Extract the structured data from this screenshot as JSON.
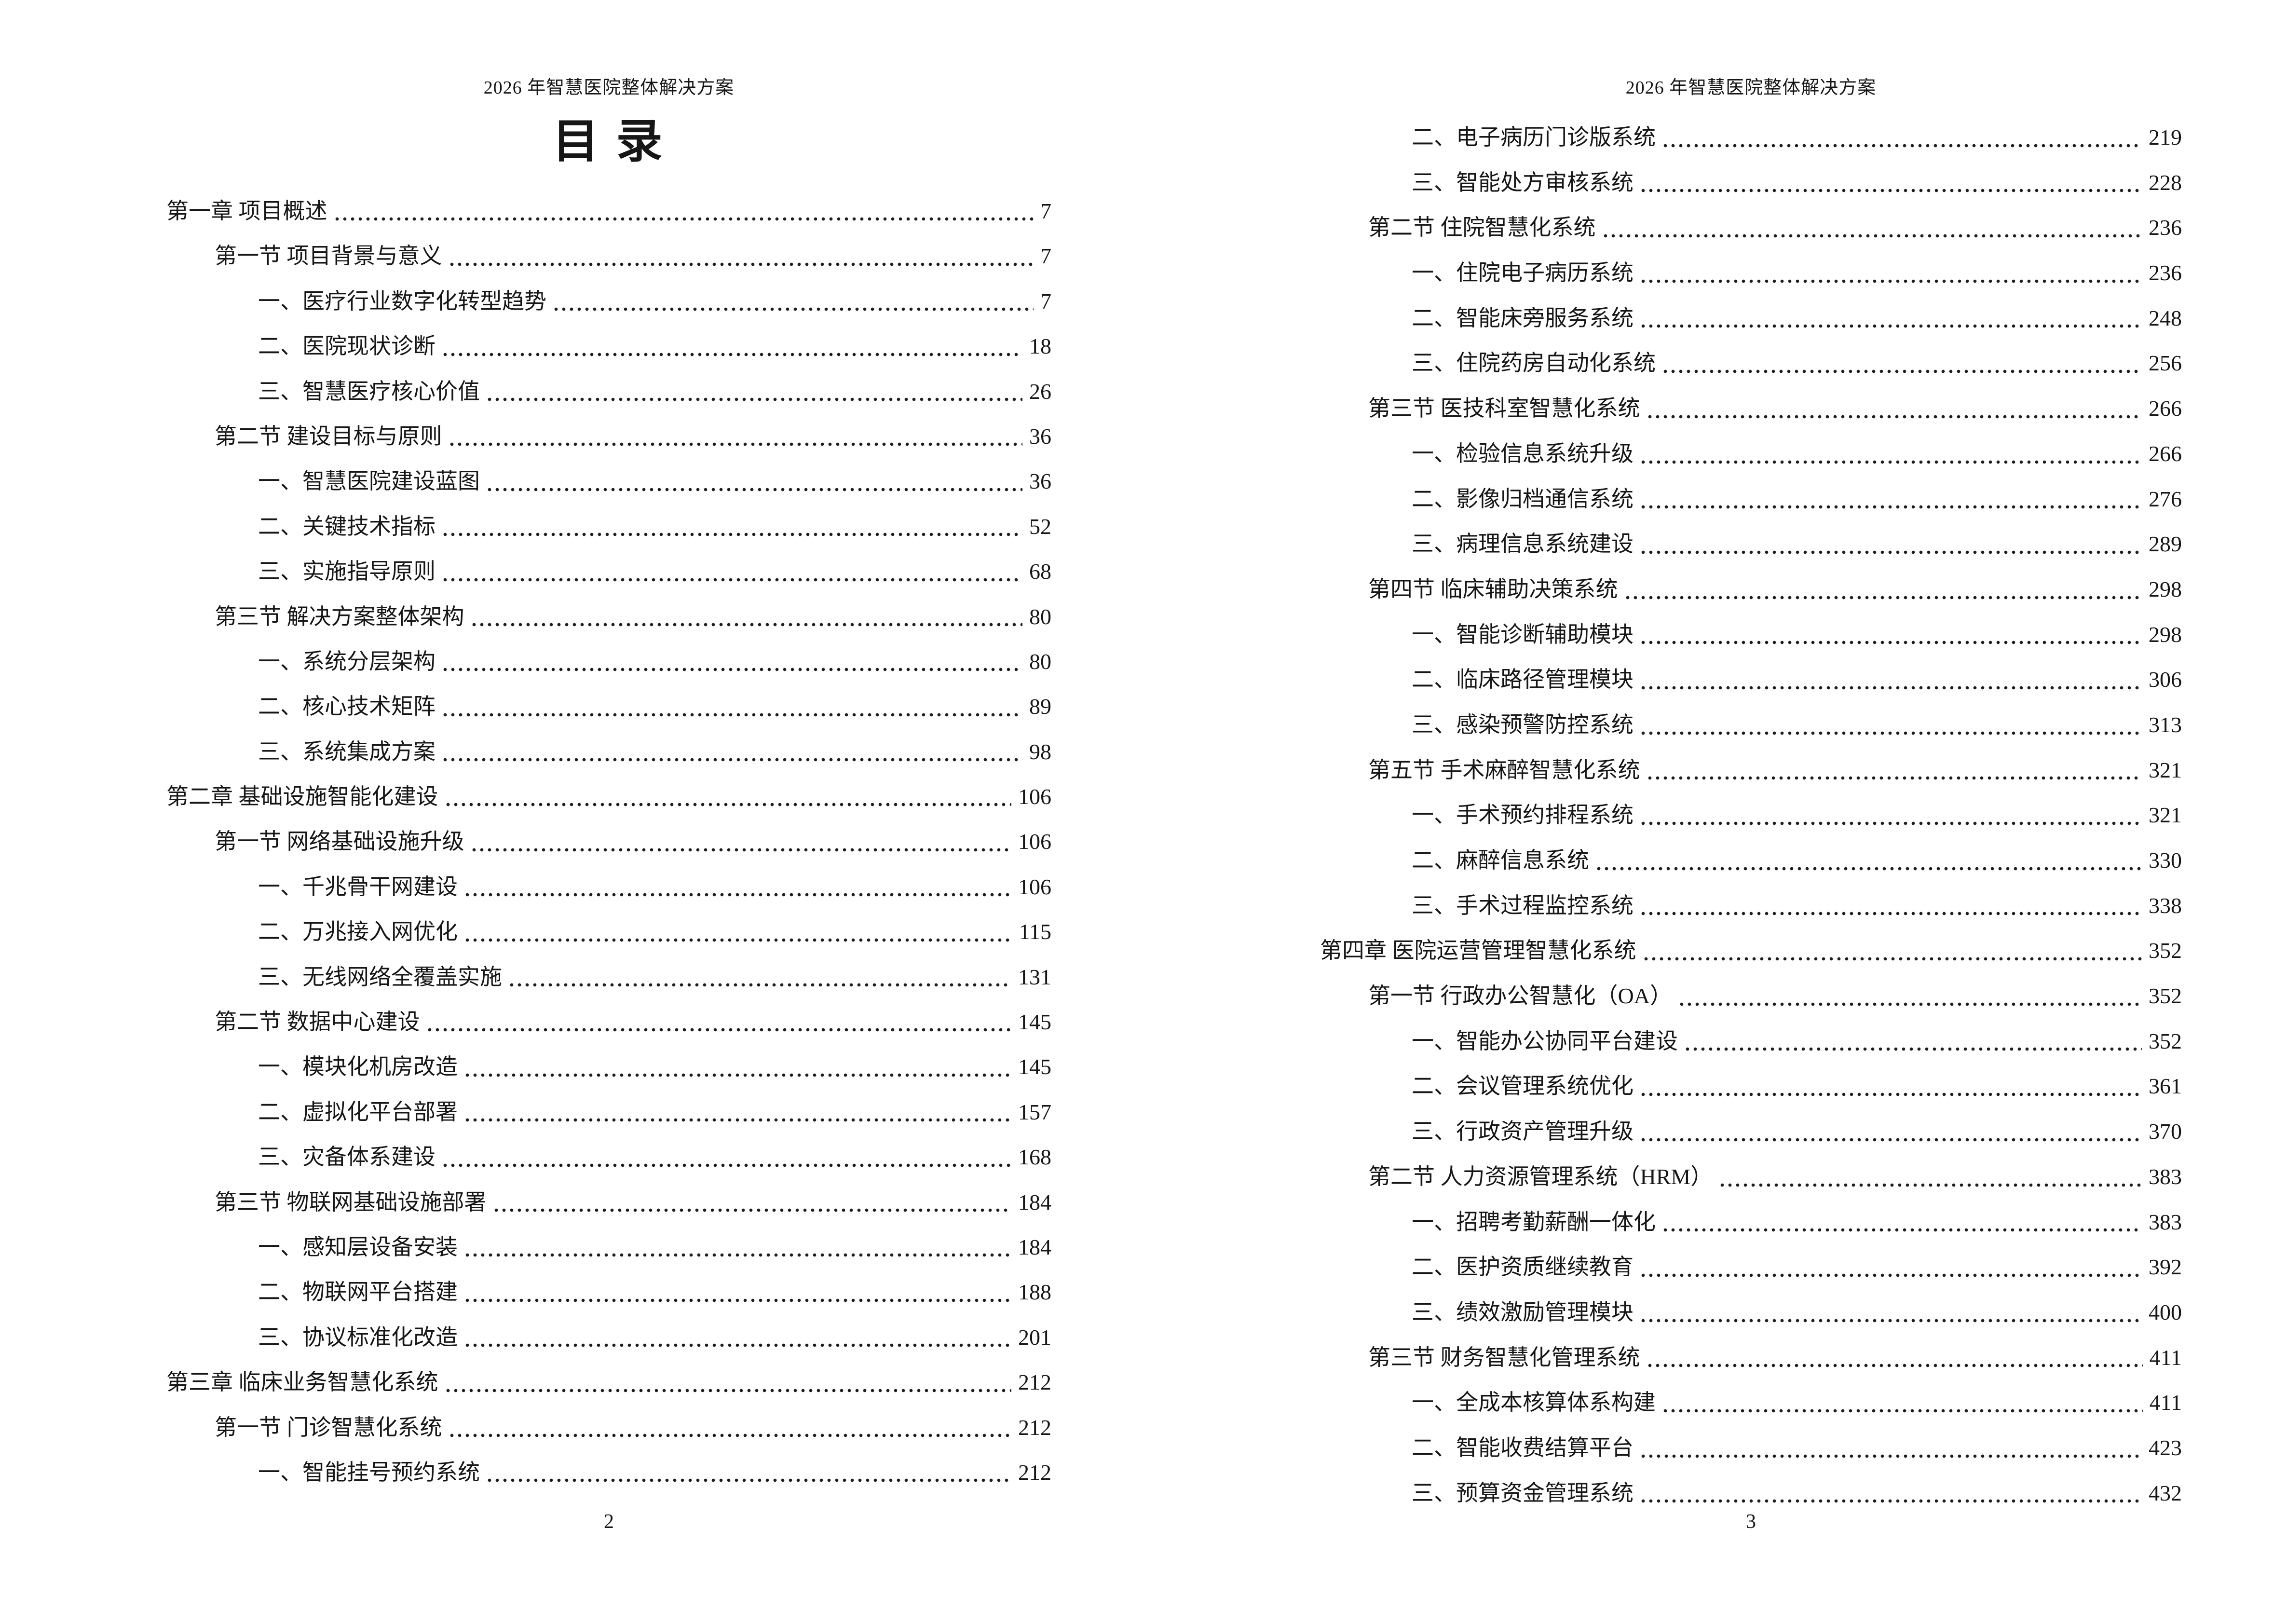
{
  "toc_title": "目 录",
  "pages": [
    {
      "header": "2026 年智慧医院整体解决方案",
      "footer_page_number": "2",
      "entries": [
        {
          "level": 0,
          "label": "第一章 项目概述",
          "page": "7"
        },
        {
          "level": 1,
          "label": "第一节 项目背景与意义",
          "page": "7"
        },
        {
          "level": 2,
          "label": "一、医疗行业数字化转型趋势",
          "page": "7"
        },
        {
          "level": 2,
          "label": "二、医院现状诊断",
          "page": "18"
        },
        {
          "level": 2,
          "label": "三、智慧医疗核心价值",
          "page": "26"
        },
        {
          "level": 1,
          "label": "第二节 建设目标与原则",
          "page": "36"
        },
        {
          "level": 2,
          "label": "一、智慧医院建设蓝图",
          "page": "36"
        },
        {
          "level": 2,
          "label": "二、关键技术指标",
          "page": "52"
        },
        {
          "level": 2,
          "label": "三、实施指导原则",
          "page": "68"
        },
        {
          "level": 1,
          "label": "第三节 解决方案整体架构",
          "page": "80"
        },
        {
          "level": 2,
          "label": "一、系统分层架构",
          "page": "80"
        },
        {
          "level": 2,
          "label": "二、核心技术矩阵",
          "page": "89"
        },
        {
          "level": 2,
          "label": "三、系统集成方案",
          "page": "98"
        },
        {
          "level": 0,
          "label": "第二章 基础设施智能化建设",
          "page": "106"
        },
        {
          "level": 1,
          "label": "第一节 网络基础设施升级",
          "page": "106"
        },
        {
          "level": 2,
          "label": "一、千兆骨干网建设",
          "page": "106"
        },
        {
          "level": 2,
          "label": "二、万兆接入网优化",
          "page": "115"
        },
        {
          "level": 2,
          "label": "三、无线网络全覆盖实施",
          "page": "131"
        },
        {
          "level": 1,
          "label": "第二节 数据中心建设",
          "page": "145"
        },
        {
          "level": 2,
          "label": "一、模块化机房改造",
          "page": "145"
        },
        {
          "level": 2,
          "label": "二、虚拟化平台部署",
          "page": "157"
        },
        {
          "level": 2,
          "label": "三、灾备体系建设",
          "page": "168"
        },
        {
          "level": 1,
          "label": "第三节 物联网基础设施部署",
          "page": "184"
        },
        {
          "level": 2,
          "label": "一、感知层设备安装",
          "page": "184"
        },
        {
          "level": 2,
          "label": "二、物联网平台搭建",
          "page": "188"
        },
        {
          "level": 2,
          "label": "三、协议标准化改造",
          "page": "201"
        },
        {
          "level": 0,
          "label": "第三章 临床业务智慧化系统",
          "page": "212"
        },
        {
          "level": 1,
          "label": "第一节 门诊智慧化系统",
          "page": "212"
        },
        {
          "level": 2,
          "label": "一、智能挂号预约系统",
          "page": "212"
        }
      ]
    },
    {
      "header": "2026 年智慧医院整体解决方案",
      "footer_page_number": "3",
      "entries": [
        {
          "level": 2,
          "label": "二、电子病历门诊版系统",
          "page": "219"
        },
        {
          "level": 2,
          "label": "三、智能处方审核系统",
          "page": "228"
        },
        {
          "level": 1,
          "label": "第二节 住院智慧化系统",
          "page": "236"
        },
        {
          "level": 2,
          "label": "一、住院电子病历系统",
          "page": "236"
        },
        {
          "level": 2,
          "label": "二、智能床旁服务系统",
          "page": "248"
        },
        {
          "level": 2,
          "label": "三、住院药房自动化系统",
          "page": "256"
        },
        {
          "level": 1,
          "label": "第三节 医技科室智慧化系统",
          "page": "266"
        },
        {
          "level": 2,
          "label": "一、检验信息系统升级",
          "page": "266"
        },
        {
          "level": 2,
          "label": "二、影像归档通信系统",
          "page": "276"
        },
        {
          "level": 2,
          "label": "三、病理信息系统建设",
          "page": "289"
        },
        {
          "level": 1,
          "label": "第四节 临床辅助决策系统",
          "page": "298"
        },
        {
          "level": 2,
          "label": "一、智能诊断辅助模块",
          "page": "298"
        },
        {
          "level": 2,
          "label": "二、临床路径管理模块",
          "page": "306"
        },
        {
          "level": 2,
          "label": "三、感染预警防控系统",
          "page": "313"
        },
        {
          "level": 1,
          "label": "第五节 手术麻醉智慧化系统",
          "page": "321"
        },
        {
          "level": 2,
          "label": "一、手术预约排程系统",
          "page": "321"
        },
        {
          "level": 2,
          "label": "二、麻醉信息系统",
          "page": "330"
        },
        {
          "level": 2,
          "label": "三、手术过程监控系统",
          "page": "338"
        },
        {
          "level": 0,
          "label": "第四章 医院运营管理智慧化系统",
          "page": "352"
        },
        {
          "level": 1,
          "label": "第一节 行政办公智慧化（OA）",
          "page": "352"
        },
        {
          "level": 2,
          "label": "一、智能办公协同平台建设",
          "page": "352"
        },
        {
          "level": 2,
          "label": "二、会议管理系统优化",
          "page": "361"
        },
        {
          "level": 2,
          "label": "三、行政资产管理升级",
          "page": "370"
        },
        {
          "level": 1,
          "label": "第二节 人力资源管理系统（HRM）",
          "page": "383"
        },
        {
          "level": 2,
          "label": "一、招聘考勤薪酬一体化",
          "page": "383"
        },
        {
          "level": 2,
          "label": "二、医护资质继续教育",
          "page": "392"
        },
        {
          "level": 2,
          "label": "三、绩效激励管理模块",
          "page": "400"
        },
        {
          "level": 1,
          "label": "第三节 财务智慧化管理系统",
          "page": "411"
        },
        {
          "level": 2,
          "label": "一、全成本核算体系构建",
          "page": "411"
        },
        {
          "level": 2,
          "label": "二、智能收费结算平台",
          "page": "423"
        },
        {
          "level": 2,
          "label": "三、预算资金管理系统",
          "page": "432"
        }
      ]
    }
  ]
}
